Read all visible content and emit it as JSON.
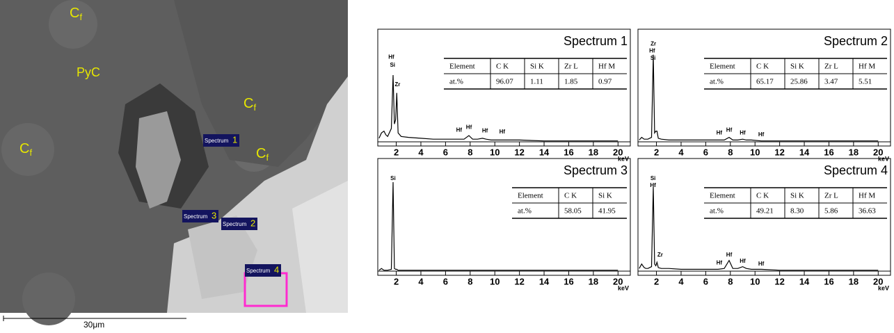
{
  "image": {
    "fiber_labels": [
      {
        "base": "C",
        "sub": "f"
      },
      {
        "base": "C",
        "sub": "f"
      },
      {
        "base": "C",
        "sub": "f"
      },
      {
        "base": "C",
        "sub": "f"
      }
    ],
    "matrix_label": "PyC",
    "spots": [
      {
        "word": "Spectrum",
        "num": "1"
      },
      {
        "word": "Spectrum",
        "num": "3"
      },
      {
        "word": "Spectrum",
        "num": "2"
      },
      {
        "word": "Spectrum",
        "num": "4"
      }
    ],
    "scale_bar": "30μm"
  },
  "chart_data": [
    {
      "type": "line",
      "title": "Spectrum 1",
      "xlabel": "keV",
      "color": "#000000",
      "x": [
        0.6,
        0.8,
        1.0,
        1.15,
        1.3,
        1.6,
        1.74,
        1.85,
        1.95,
        2.04,
        2.15,
        2.4,
        3,
        4,
        5,
        6,
        7,
        7.5,
        7.9,
        8.2,
        8.6,
        9.0,
        9.3,
        9.7,
        10.5,
        12,
        14,
        16,
        18,
        20
      ],
      "values": [
        4,
        10,
        12,
        8,
        6,
        15,
        75,
        20,
        25,
        55,
        10,
        6,
        5,
        4,
        3,
        3,
        3,
        3,
        7,
        3,
        3,
        4,
        3,
        2,
        2,
        2,
        1,
        1,
        1,
        1
      ],
      "xlim": [
        0.5,
        21
      ],
      "ylim": [
        0,
        100
      ],
      "xticks": [
        2,
        4,
        6,
        8,
        10,
        12,
        14,
        16,
        18,
        20
      ],
      "annotations": [
        {
          "text": "Hf",
          "x": 1.6,
          "y": 95
        },
        {
          "text": "Si",
          "x": 1.7,
          "y": 86
        },
        {
          "text": "Zr",
          "x": 2.1,
          "y": 64
        },
        {
          "text": "Hf",
          "x": 7.1,
          "y": 13
        },
        {
          "text": "Hf",
          "x": 7.9,
          "y": 16
        },
        {
          "text": "Hf",
          "x": 9.2,
          "y": 12
        },
        {
          "text": "Hf",
          "x": 10.6,
          "y": 11
        }
      ],
      "table": {
        "header": [
          "Element",
          "C K",
          "Si K",
          "Zr L",
          "Hf M"
        ],
        "rows": [
          [
            "at.%",
            "96.07",
            "1.11",
            "1.85",
            "0.97"
          ]
        ]
      }
    },
    {
      "type": "line",
      "title": "Spectrum 2",
      "xlabel": "keV",
      "color": "#000000",
      "x": [
        0.6,
        0.8,
        1.0,
        1.15,
        1.3,
        1.6,
        1.74,
        1.85,
        1.95,
        2.04,
        2.15,
        2.4,
        3,
        4,
        5,
        6,
        7,
        7.5,
        7.9,
        8.2,
        8.6,
        9.0,
        9.3,
        9.7,
        10.5,
        12,
        14,
        16,
        18,
        20
      ],
      "values": [
        2,
        5,
        3,
        3,
        3,
        5,
        98,
        10,
        12,
        12,
        4,
        3,
        2,
        2,
        2,
        2,
        2,
        2,
        5,
        2,
        2,
        3,
        2,
        2,
        1,
        1,
        1,
        1,
        1,
        1
      ],
      "xlim": [
        0.5,
        21
      ],
      "ylim": [
        0,
        100
      ],
      "xticks": [
        2,
        4,
        6,
        8,
        10,
        12,
        14,
        16,
        18,
        20
      ],
      "annotations": [
        {
          "text": "Zr",
          "x": 1.75,
          "y": 110
        },
        {
          "text": "Hf",
          "x": 1.65,
          "y": 102
        },
        {
          "text": "Si",
          "x": 1.72,
          "y": 94
        },
        {
          "text": "Hf",
          "x": 7.1,
          "y": 10
        },
        {
          "text": "Hf",
          "x": 7.9,
          "y": 13
        },
        {
          "text": "Hf",
          "x": 9.0,
          "y": 10
        },
        {
          "text": "Hf",
          "x": 10.5,
          "y": 8
        }
      ],
      "table": {
        "header": [
          "Element",
          "C K",
          "Si K",
          "Zr L",
          "Hf M"
        ],
        "rows": [
          [
            "at.%",
            "65.17",
            "25.86",
            "3.47",
            "5.51"
          ]
        ]
      }
    },
    {
      "type": "line",
      "title": "Spectrum 3",
      "xlabel": "keV",
      "color": "#000000",
      "x": [
        0.6,
        0.8,
        1.0,
        1.15,
        1.3,
        1.6,
        1.74,
        1.85,
        1.95,
        2.04,
        2.15,
        2.4,
        3,
        4,
        5,
        6,
        7,
        7.5,
        7.9,
        8.2,
        8.6,
        9.0,
        9.3,
        9.7,
        10.5,
        12,
        14,
        16,
        18,
        20
      ],
      "values": [
        1,
        3,
        1,
        1,
        1,
        2,
        100,
        3,
        2,
        2,
        1,
        1,
        1,
        1,
        1,
        1,
        1,
        1,
        1,
        1,
        1,
        1,
        1,
        1,
        1,
        1,
        1,
        1,
        1,
        1
      ],
      "xlim": [
        0.5,
        21
      ],
      "ylim": [
        0,
        100
      ],
      "xticks": [
        2,
        4,
        6,
        8,
        10,
        12,
        14,
        16,
        18,
        20
      ],
      "annotations": [
        {
          "text": "Si",
          "x": 1.74,
          "y": 104
        }
      ],
      "table": {
        "header": [
          "Element",
          "C K",
          "Si K"
        ],
        "rows": [
          [
            "at.%",
            "58.05",
            "41.95"
          ]
        ]
      }
    },
    {
      "type": "line",
      "title": "Spectrum 4",
      "xlabel": "keV",
      "color": "#000000",
      "x": [
        0.6,
        0.8,
        1.0,
        1.15,
        1.3,
        1.6,
        1.74,
        1.85,
        1.95,
        2.04,
        2.15,
        2.4,
        3,
        4,
        5,
        6,
        7,
        7.5,
        7.9,
        8.2,
        8.6,
        9.0,
        9.3,
        9.7,
        10.5,
        12,
        14,
        16,
        18,
        20
      ],
      "values": [
        3,
        8,
        4,
        3,
        3,
        5,
        95,
        8,
        6,
        10,
        4,
        3,
        3,
        2,
        2,
        2,
        2,
        3,
        12,
        3,
        3,
        5,
        3,
        2,
        2,
        1,
        1,
        1,
        1,
        1
      ],
      "xlim": [
        0.5,
        21
      ],
      "ylim": [
        0,
        100
      ],
      "xticks": [
        2,
        4,
        6,
        8,
        10,
        12,
        14,
        16,
        18,
        20
      ],
      "annotations": [
        {
          "text": "Si",
          "x": 1.72,
          "y": 104
        },
        {
          "text": "Hf",
          "x": 1.72,
          "y": 96
        },
        {
          "text": "Zr",
          "x": 2.3,
          "y": 18
        },
        {
          "text": "Hf",
          "x": 7.1,
          "y": 9
        },
        {
          "text": "Hf",
          "x": 7.9,
          "y": 18
        },
        {
          "text": "Hf",
          "x": 9.0,
          "y": 11
        },
        {
          "text": "Hf",
          "x": 10.5,
          "y": 8
        }
      ],
      "table": {
        "header": [
          "Element",
          "C K",
          "Si K",
          "Zr L",
          "Hf M"
        ],
        "rows": [
          [
            "at.%",
            "49.21",
            "8.30",
            "5.86",
            "36.63"
          ]
        ]
      }
    }
  ]
}
